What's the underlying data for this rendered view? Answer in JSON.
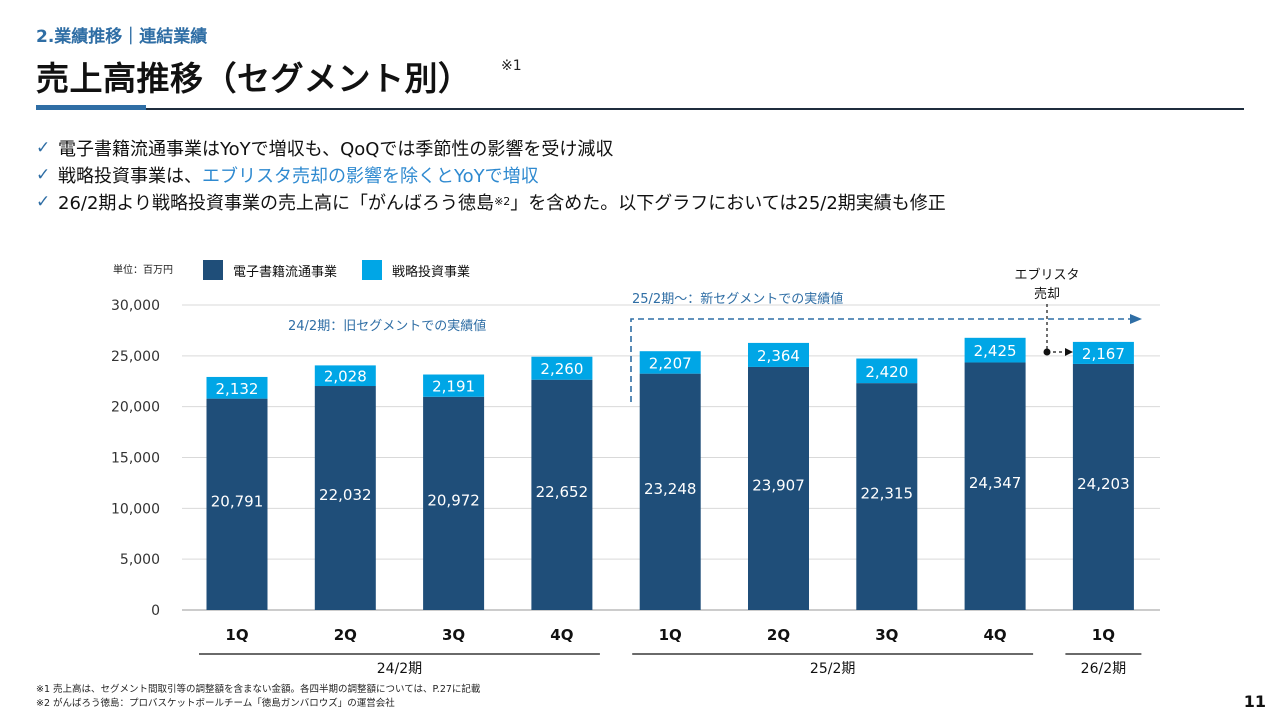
{
  "header": {
    "section": "2.業績推移｜連結業績",
    "title": "売上高推移（セグメント別）",
    "title_note": "※1"
  },
  "bullets": [
    {
      "check": "✓",
      "text": "電子書籍流通事業はYoYで増収も、QoQでは季節性の影響を受け減収"
    },
    {
      "check": "✓",
      "pre": "戦略投資事業は、",
      "highlight": "エブリスタ売却の影響を除くとYoYで増収"
    },
    {
      "check": "✓",
      "pre": "26/2期より戦略投資事業の売上高に「がんばろう徳島",
      "sup": "※2",
      "post": "」を含めた。以下グラフにおいては25/2期実績も修正"
    }
  ],
  "unit": "単位：百万円",
  "legend": [
    {
      "label": "電子書籍流通事業",
      "color": "#1f4e79"
    },
    {
      "label": "戦略投資事業",
      "color": "#00a6e6"
    }
  ],
  "annotations": {
    "old_segment": "24/2期：旧セグメントでの実績値",
    "new_segment": "25/2期～：新セグメントでの実績値",
    "sale_line1": "エブリスタ",
    "sale_line2": "売却"
  },
  "chart_data": {
    "type": "bar",
    "stacked": true,
    "categories": [
      "1Q",
      "2Q",
      "3Q",
      "4Q",
      "1Q",
      "2Q",
      "3Q",
      "4Q",
      "1Q"
    ],
    "periods": [
      {
        "label": "24/2期",
        "from": 0,
        "to": 3
      },
      {
        "label": "25/2期",
        "from": 4,
        "to": 7
      },
      {
        "label": "26/2期",
        "from": 8,
        "to": 8
      }
    ],
    "series": [
      {
        "name": "電子書籍流通事業",
        "color": "#1f4e79",
        "values": [
          20791,
          22032,
          20972,
          22652,
          23248,
          23907,
          22315,
          24347,
          24203
        ]
      },
      {
        "name": "戦略投資事業",
        "color": "#00a6e6",
        "values": [
          2132,
          2028,
          2191,
          2260,
          2207,
          2364,
          2420,
          2425,
          2167
        ]
      }
    ],
    "ylim": [
      0,
      30000
    ],
    "yticks": [
      0,
      5000,
      10000,
      15000,
      20000,
      25000,
      30000
    ],
    "ytick_labels": [
      "0",
      "5,000",
      "10,000",
      "15,000",
      "20,000",
      "25,000",
      "30,000"
    ],
    "grid": true,
    "legend_position": "top-left"
  },
  "footnotes": [
    "※1 売上高は、セグメント間取引等の調整額を含まない金額。各四半期の調整額については、P.27に記載",
    "※2 がんばろう徳島：プロバスケットボールチーム「徳島ガンバロウズ」の運営会社"
  ],
  "page_number": "11"
}
